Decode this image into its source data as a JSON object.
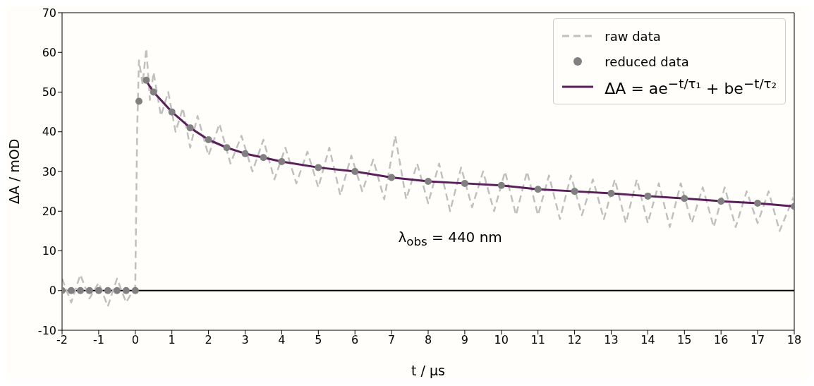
{
  "chart_data": {
    "type": "line",
    "xlabel": "t / µs",
    "ylabel": "ΔA / mOD",
    "xlim": [
      -2,
      18
    ],
    "xticks": [
      -2,
      -1,
      0,
      1,
      2,
      3,
      4,
      5,
      6,
      7,
      8,
      9,
      10,
      11,
      12,
      13,
      14,
      15,
      16,
      17,
      18
    ],
    "ylim": [
      -10,
      70
    ],
    "yticks": [
      -10,
      0,
      10,
      20,
      30,
      40,
      50,
      60,
      70
    ],
    "grid": false,
    "legend": "top right",
    "annotations": [
      "λ$_{obs}$ = 440 nm"
    ],
    "ref_lines": [
      {
        "axis": "y",
        "value": 0,
        "color": "#000000"
      }
    ],
    "series": [
      {
        "name": "raw data",
        "line_style": "dashed",
        "color": "#c0c0c0",
        "x": [
          -2,
          -1.75,
          -1.5,
          -1.25,
          -1,
          -0.75,
          -0.5,
          -0.25,
          0,
          0.05,
          0.1,
          0.2,
          0.3,
          0.4,
          0.5,
          0.7,
          0.9,
          1.1,
          1.3,
          1.5,
          1.7,
          2,
          2.3,
          2.6,
          2.9,
          3.2,
          3.5,
          3.8,
          4.1,
          4.4,
          4.7,
          5,
          5.3,
          5.6,
          5.9,
          6.2,
          6.5,
          6.8,
          7.1,
          7.4,
          7.7,
          8,
          8.3,
          8.6,
          8.9,
          9.2,
          9.5,
          9.8,
          10.1,
          10.4,
          10.7,
          11,
          11.3,
          11.6,
          11.9,
          12.2,
          12.5,
          12.8,
          13.1,
          13.4,
          13.7,
          14,
          14.3,
          14.6,
          14.9,
          15.2,
          15.5,
          15.8,
          16.1,
          16.4,
          16.7,
          17,
          17.3,
          17.6,
          18
        ],
        "values": [
          3,
          -3,
          4,
          -2,
          2,
          -4,
          3,
          -3,
          1,
          40,
          58,
          52,
          61,
          48,
          55,
          44,
          50,
          40,
          46,
          36,
          44,
          34,
          42,
          32,
          39,
          30,
          38,
          28,
          36,
          27,
          35,
          26,
          36,
          24,
          34,
          25,
          33,
          23,
          39,
          23,
          32,
          22,
          32,
          20,
          31,
          21,
          30,
          20,
          30,
          19,
          30,
          19,
          29,
          18,
          29,
          19,
          28,
          18,
          28,
          17,
          28,
          17,
          27,
          16,
          27,
          17,
          26,
          16,
          26,
          16,
          25,
          17,
          25,
          15,
          24
        ]
      },
      {
        "name": "reduced data",
        "type": "scatter",
        "marker": "circle",
        "color": "#808080",
        "x": [
          -2,
          -1.75,
          -1.5,
          -1.25,
          -1,
          -0.75,
          -0.5,
          -0.25,
          0,
          0.1,
          0.3,
          0.5,
          1,
          1.5,
          2,
          2.5,
          3,
          3.5,
          4,
          5,
          6,
          7,
          8,
          9,
          10,
          11,
          12,
          13,
          14,
          15,
          16,
          17,
          18
        ],
        "values": [
          0,
          0,
          0,
          0,
          0,
          0,
          0,
          0,
          0,
          47.7,
          53,
          50,
          45,
          41,
          38,
          36,
          34.5,
          33.5,
          32.5,
          31,
          30,
          28.5,
          27.5,
          27,
          26.5,
          25.5,
          25,
          24.5,
          23.8,
          23.2,
          22.5,
          22,
          21.2
        ]
      },
      {
        "name": "ΔA = ae$^{−t/τ₁}$ + be$^{−t/τ₂}$",
        "line_style": "solid",
        "color": "#5a1f5a",
        "x": [
          0.25,
          0.5,
          1,
          1.5,
          2,
          2.5,
          3,
          4,
          5,
          6,
          7,
          8,
          9,
          10,
          11,
          12,
          13,
          14,
          15,
          16,
          17,
          18
        ],
        "values": [
          53.5,
          50,
          45,
          41,
          38,
          36,
          34.5,
          32.5,
          31,
          30,
          28.5,
          27.5,
          27,
          26.5,
          25.5,
          25,
          24.5,
          23.8,
          23.2,
          22.5,
          22,
          21.2
        ]
      }
    ]
  }
}
